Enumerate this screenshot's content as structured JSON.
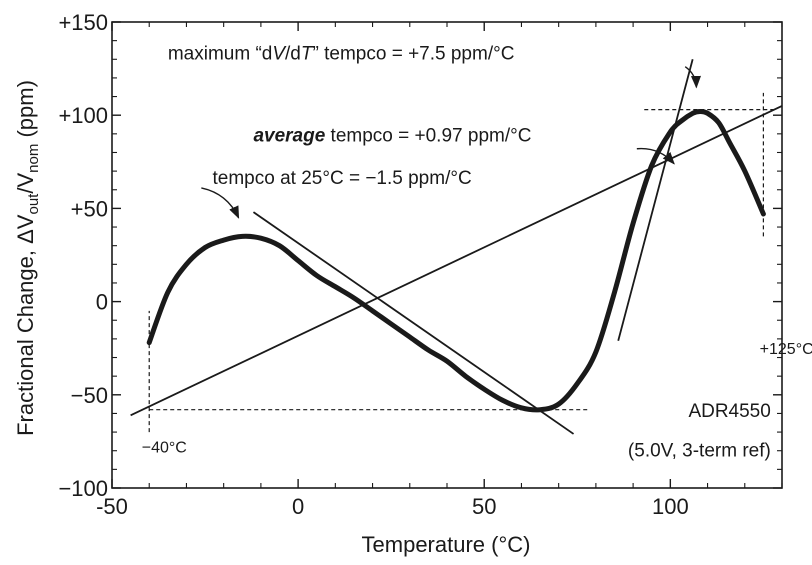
{
  "chart_data": {
    "type": "line",
    "title": "",
    "xlabel": "Temperature (°C)",
    "ylabel": {
      "prefix": "Fractional Change, ΔV",
      "sub1": "out",
      "mid": "/V",
      "sub2": "nom",
      "suffix": "  (ppm)"
    },
    "xlim": [
      -50,
      130
    ],
    "ylim": [
      -100,
      150
    ],
    "xticks": [
      -50,
      0,
      50,
      100
    ],
    "xtick_labels": [
      "-50",
      "0",
      "50",
      "100"
    ],
    "yticks": [
      -100,
      -50,
      0,
      50,
      100,
      150
    ],
    "ytick_labels": [
      "−100",
      "−50",
      "0",
      "+50",
      "+100",
      "+150"
    ],
    "grid": false,
    "series": [
      {
        "name": "",
        "style": "thick",
        "x": [
          -40,
          -35,
          -30,
          -25,
          -20,
          -15,
          -10,
          -5,
          0,
          5,
          10,
          15,
          20,
          25,
          30,
          35,
          40,
          45,
          50,
          55,
          60,
          65,
          70,
          75,
          80,
          85,
          90,
          95,
          100,
          103,
          106,
          108,
          110,
          113,
          116,
          120,
          125
        ],
        "y": [
          -22,
          5,
          20,
          29,
          33,
          35,
          34,
          30,
          22,
          14,
          8,
          2,
          -5,
          -12,
          -19,
          -26,
          -32,
          -40,
          -47,
          -53,
          -57,
          -58,
          -55,
          -44,
          -27,
          5,
          42,
          73,
          91,
          97,
          101,
          102,
          101,
          96,
          85,
          70,
          47
        ]
      }
    ],
    "tangent_lines": [
      {
        "label": "maximum tempco",
        "x": [
          86,
          106
        ],
        "y": [
          -21,
          130
        ]
      },
      {
        "label": "average tempco",
        "x": [
          -45,
          130
        ],
        "y": [
          -61,
          105
        ]
      },
      {
        "label": "tempco at 25°C",
        "x": [
          -12,
          74
        ],
        "y": [
          48,
          -71
        ]
      }
    ],
    "reference_lines": [
      {
        "x": [
          -40,
          78
        ],
        "y": [
          -58,
          -58
        ]
      },
      {
        "x": [
          -40,
          -40
        ],
        "y": [
          -70,
          -5
        ]
      },
      {
        "x": [
          93,
          128
        ],
        "y": [
          103,
          103
        ]
      },
      {
        "x": [
          125,
          125
        ],
        "y": [
          35,
          112
        ]
      }
    ],
    "annotations": [
      {
        "id": "max",
        "text": "maximum “dV/dT” tempco = +7.5 ppm/°C",
        "x": -35,
        "y": 130
      },
      {
        "id": "avg",
        "text": "average tempco = +0.97 ppm/°C",
        "x": -12,
        "y": 86
      },
      {
        "id": "at25",
        "text": "tempco at 25°C = −1.5 ppm/°C",
        "x": -23,
        "y": 63
      },
      {
        "id": "lo",
        "text": "−40°C",
        "x": -42,
        "y": -81
      },
      {
        "id": "hi",
        "text": "+125°C",
        "x": 124,
        "y": -28
      },
      {
        "id": "part",
        "text": "ADR4550",
        "x": 127,
        "y": -62
      },
      {
        "id": "ref",
        "text": "(5.0V, 3-term ref)",
        "x": 127,
        "y": -83
      }
    ],
    "annotation_parts": {
      "max": {
        "a": "maximum “d",
        "b": "V",
        "c": "/d",
        "d": "T",
        "e": "” tempco = +7.5 ppm/°C"
      },
      "avg": {
        "a": "average",
        "b": " tempco = +0.97 ppm/°C"
      }
    },
    "arrows": [
      {
        "from": [
          104,
          126
        ],
        "to": [
          107,
          115
        ]
      },
      {
        "from": [
          91,
          82
        ],
        "to": [
          101,
          74
        ]
      },
      {
        "from": [
          -26,
          61
        ],
        "to": [
          -16,
          45
        ]
      }
    ]
  }
}
